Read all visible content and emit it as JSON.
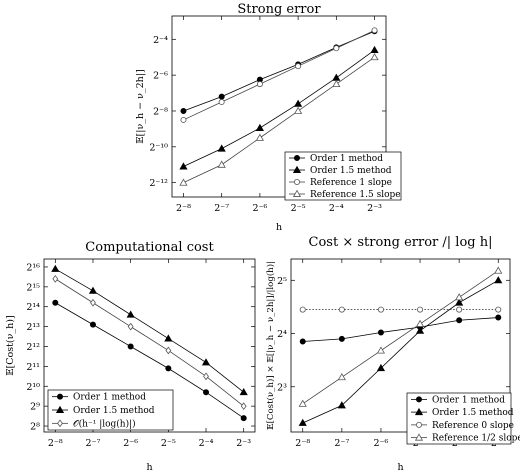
{
  "chart_data": [
    {
      "type": "line",
      "title": "Strong error",
      "xlabel": "h",
      "ylabel": "𝔼[|ν_h − ν_2h|]",
      "log_base_x": 2,
      "log_base_y": 2,
      "x": [
        -8,
        -7,
        -6,
        -5,
        -4,
        -3
      ],
      "x_tick_labels": [
        "2⁻⁸",
        "2⁻⁷",
        "2⁻⁶",
        "2⁻⁵",
        "2⁻⁴",
        "2⁻³"
      ],
      "y_ticks": [
        -12,
        -10,
        -8,
        -6,
        -4
      ],
      "y_tick_labels": [
        "2⁻¹²",
        "2⁻¹⁰",
        "2⁻⁸",
        "2⁻⁶",
        "2⁻⁴"
      ],
      "xlim": [
        -8.3,
        -2.7
      ],
      "ylim": [
        -12.8,
        -2.7
      ],
      "grid": false,
      "legend_position": "bottom-right",
      "series": [
        {
          "name": "Order 1 method",
          "marker": "circle-filled",
          "values": [
            -8.0,
            -7.2,
            -6.25,
            -5.4,
            -4.45,
            -3.55
          ]
        },
        {
          "name": "Order 1.5 method",
          "marker": "triangle-filled",
          "values": [
            -11.1,
            -10.1,
            -8.95,
            -7.6,
            -6.15,
            -4.6
          ]
        },
        {
          "name": "Reference 1 slope",
          "marker": "circle-open",
          "values": [
            -8.5,
            -7.5,
            -6.5,
            -5.5,
            -4.5,
            -3.5
          ]
        },
        {
          "name": "Reference 1.5 slope",
          "marker": "triangle-open",
          "values": [
            -12.0,
            -11.0,
            -9.5,
            -8.0,
            -6.5,
            -5.0
          ]
        }
      ]
    },
    {
      "type": "line",
      "title": "Computational cost",
      "xlabel": "h",
      "ylabel": "𝔼[Cost(ν_h)]",
      "log_base_x": 2,
      "log_base_y": 2,
      "x": [
        -8,
        -7,
        -6,
        -5,
        -4,
        -3
      ],
      "x_tick_labels": [
        "2⁻⁸",
        "2⁻⁷",
        "2⁻⁶",
        "2⁻⁵",
        "2⁻⁴",
        "2⁻³"
      ],
      "y_ticks": [
        8,
        9,
        10,
        11,
        12,
        13,
        14,
        15,
        16
      ],
      "y_tick_labels": [
        "2⁸",
        "2⁹",
        "2¹⁰",
        "2¹¹",
        "2¹²",
        "2¹³",
        "2¹⁴",
        "2¹⁵",
        "2¹⁶"
      ],
      "xlim": [
        -8.3,
        -2.7
      ],
      "ylim": [
        7.7,
        16.4
      ],
      "grid": false,
      "legend_position": "bottom-left",
      "series": [
        {
          "name": "Order 1 method",
          "marker": "circle-filled",
          "values": [
            14.2,
            13.1,
            12.0,
            10.9,
            9.7,
            8.4
          ]
        },
        {
          "name": "Order 1.5 method",
          "marker": "triangle-filled",
          "values": [
            15.9,
            14.8,
            13.6,
            12.4,
            11.2,
            9.7
          ]
        },
        {
          "name": "𝒪(h⁻¹ |log(h)|)",
          "marker": "diamond-open",
          "values": [
            15.4,
            14.2,
            13.0,
            11.8,
            10.5,
            9.0
          ]
        }
      ]
    },
    {
      "type": "line",
      "title": "Cost × strong error /| log h|",
      "xlabel": "h",
      "ylabel": "𝔼[Cost(ν_h)] × 𝔼[|ν_h − ν_2h|]/|log(h)|",
      "log_base_x": 2,
      "log_base_y": 2,
      "x": [
        -8,
        -7,
        -6,
        -5,
        -4,
        -3
      ],
      "x_tick_labels": [
        "2⁻⁸",
        "2⁻⁷",
        "2⁻⁶",
        "2⁻⁵",
        "2⁻⁴",
        "2⁻³"
      ],
      "y_ticks": [
        3,
        4,
        5
      ],
      "y_tick_labels": [
        "2³",
        "2⁴",
        "2⁵"
      ],
      "xlim": [
        -8.3,
        -2.7
      ],
      "ylim": [
        2.15,
        5.4
      ],
      "grid": false,
      "legend_position": "bottom-right",
      "series": [
        {
          "name": "Order 1 method",
          "marker": "circle-filled",
          "values": [
            3.85,
            3.9,
            4.02,
            4.12,
            4.25,
            4.3
          ]
        },
        {
          "name": "Order 1.5 method",
          "marker": "triangle-filled",
          "values": [
            2.32,
            2.65,
            3.35,
            4.05,
            4.58,
            5.0
          ]
        },
        {
          "name": "Reference 0 slope",
          "marker": "circle-open",
          "values": [
            4.45,
            4.45,
            4.45,
            4.45,
            4.45,
            4.45
          ]
        },
        {
          "name": "Reference 1/2 slope",
          "marker": "triangle-open",
          "values": [
            2.68,
            3.18,
            3.68,
            4.18,
            4.68,
            5.18
          ]
        }
      ]
    }
  ]
}
